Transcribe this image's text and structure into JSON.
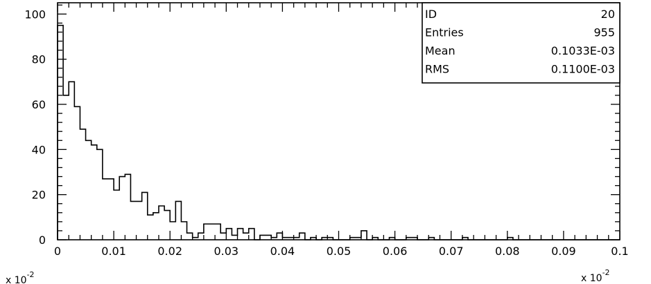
{
  "chart_data": {
    "type": "histogram",
    "xlim": [
      0,
      0.1
    ],
    "ylim": [
      0,
      105
    ],
    "bin_width": 0.001,
    "values": [
      95,
      64,
      70,
      59,
      49,
      44,
      42,
      40,
      27,
      27,
      22,
      28,
      29,
      17,
      17,
      21,
      11,
      12,
      15,
      13,
      8,
      17,
      8,
      3,
      1,
      3,
      7,
      7,
      7,
      3,
      5,
      2,
      5,
      3,
      5,
      0,
      2,
      2,
      1,
      3,
      1,
      1,
      1,
      3,
      0,
      1,
      0,
      1,
      1,
      0,
      0,
      0,
      1,
      1,
      4,
      0,
      1,
      0,
      0,
      1,
      0,
      0,
      1,
      1,
      0,
      0,
      1,
      0,
      0,
      0,
      0,
      0,
      1,
      0,
      0,
      0,
      0,
      0,
      0,
      0,
      1,
      0,
      0,
      0,
      0,
      0,
      0,
      0,
      0,
      0,
      0,
      0,
      0,
      0,
      0,
      0,
      0,
      0,
      0,
      0
    ],
    "x_ticks": [
      "0",
      "0.01",
      "0.02",
      "0.03",
      "0.04",
      "0.05",
      "0.06",
      "0.07",
      "0.08",
      "0.09",
      "0.1"
    ],
    "y_ticks": [
      "0",
      "20",
      "40",
      "60",
      "80",
      "100"
    ],
    "x_factor": {
      "base": "x 10",
      "exp": "-2"
    },
    "y_factor": {
      "base": "x 10",
      "exp": "-2"
    },
    "stats_box": {
      "position": "top-right",
      "rows": [
        {
          "label": "ID",
          "value": "20"
        },
        {
          "label": "Entries",
          "value": "955"
        },
        {
          "label": "Mean",
          "value": "0.1033E-03"
        },
        {
          "label": "RMS",
          "value": "0.1100E-03"
        }
      ]
    }
  }
}
